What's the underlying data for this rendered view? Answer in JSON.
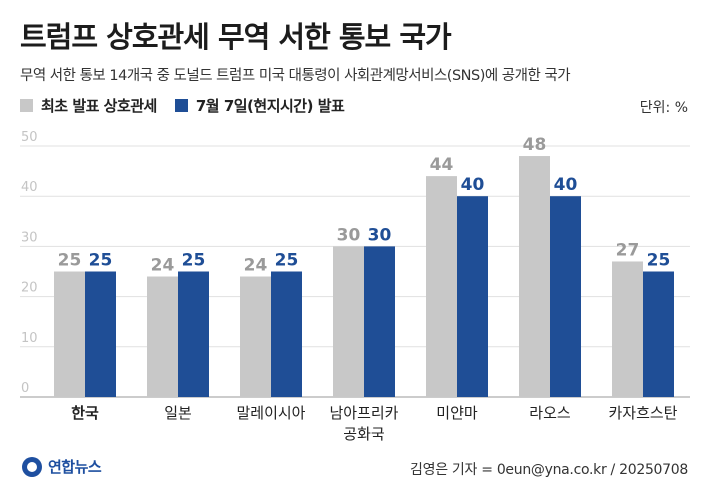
{
  "title": "트럼프 상호관세 무역 서한 통보 국가",
  "subtitle": "무역 서한 통보 14개국 중 도널드 트럼프 미국 대통령이 사회관계망서비스(SNS)에 공개한 국가",
  "unit_label": "단위: %",
  "logo_text": "연합뉴스",
  "credit": "김영은 기자 = 0eun@yna.co.kr / 20250708",
  "colors": {
    "initial": "#c8c8c8",
    "july7": "#1f4e96",
    "initial_label": "#9a9a9a",
    "july7_label": "#1f4e96"
  },
  "chart_data": {
    "type": "bar",
    "categories": [
      "한국",
      "일본",
      "말레이시아",
      "남아프리카공화국",
      "미얀마",
      "라오스",
      "카자흐스탄"
    ],
    "category_lines": [
      [
        "한국"
      ],
      [
        "일본"
      ],
      [
        "말레이시아"
      ],
      [
        "남아프리카",
        "공화국"
      ],
      [
        "미얀마"
      ],
      [
        "라오스"
      ],
      [
        "카자흐스탄"
      ]
    ],
    "highlight_category": "한국",
    "series": [
      {
        "name": "최초 발표 상호관세",
        "values": [
          25,
          24,
          24,
          30,
          44,
          48,
          27
        ]
      },
      {
        "name": "7월 7일(현지시간) 발표",
        "values": [
          25,
          25,
          25,
          30,
          40,
          40,
          25
        ]
      }
    ],
    "yticks": [
      0,
      10,
      20,
      30,
      40,
      50
    ],
    "ylim": [
      0,
      50
    ],
    "grid": true,
    "legend_position": "top-left"
  }
}
